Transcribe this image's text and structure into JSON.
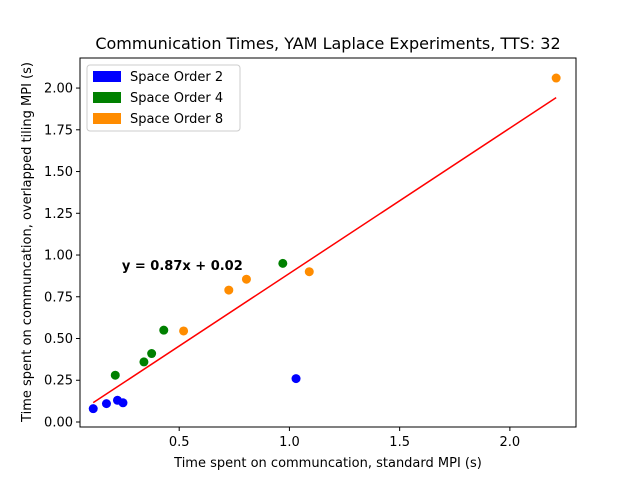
{
  "chart_data": {
    "type": "scatter",
    "title": "Communication Times, YAM Laplace Experiments, TTS: 32",
    "xlabel": "Time spent on communcation, standard MPI (s)",
    "ylabel": "Time spent on communcation, overlapped tiling MPI (s)",
    "xlim": [
      0.05,
      2.3
    ],
    "ylim": [
      -0.03,
      2.18
    ],
    "xticks": [
      0.5,
      1.0,
      1.5,
      2.0
    ],
    "xtick_labels": [
      "0.5",
      "1.0",
      "1.5",
      "2.0"
    ],
    "yticks": [
      0.0,
      0.25,
      0.5,
      0.75,
      1.0,
      1.25,
      1.5,
      1.75,
      2.0
    ],
    "ytick_labels": [
      "0.00",
      "0.25",
      "0.50",
      "0.75",
      "1.00",
      "1.25",
      "1.50",
      "1.75",
      "2.00"
    ],
    "grid": false,
    "legend_position": "top-left",
    "series": [
      {
        "name": "Space Order 2",
        "color": "#0000ff",
        "points": [
          [
            0.11,
            0.08
          ],
          [
            0.17,
            0.11
          ],
          [
            0.22,
            0.13
          ],
          [
            0.245,
            0.115
          ],
          [
            1.03,
            0.26
          ]
        ]
      },
      {
        "name": "Space Order 4",
        "color": "#008000",
        "points": [
          [
            0.21,
            0.28
          ],
          [
            0.34,
            0.36
          ],
          [
            0.375,
            0.41
          ],
          [
            0.43,
            0.55
          ],
          [
            0.97,
            0.95
          ]
        ]
      },
      {
        "name": "Space Order 8",
        "color": "#ff8c00",
        "points": [
          [
            0.52,
            0.545
          ],
          [
            0.725,
            0.79
          ],
          [
            0.805,
            0.855
          ],
          [
            1.09,
            0.9
          ],
          [
            2.21,
            2.06
          ]
        ]
      }
    ],
    "fit_line": {
      "color": "#ff0000",
      "slope": 0.87,
      "intercept": 0.02,
      "x_range": [
        0.11,
        2.21
      ]
    },
    "annotation": {
      "text": "y = 0.87x + 0.02",
      "x": 0.24,
      "y": 0.91
    }
  }
}
